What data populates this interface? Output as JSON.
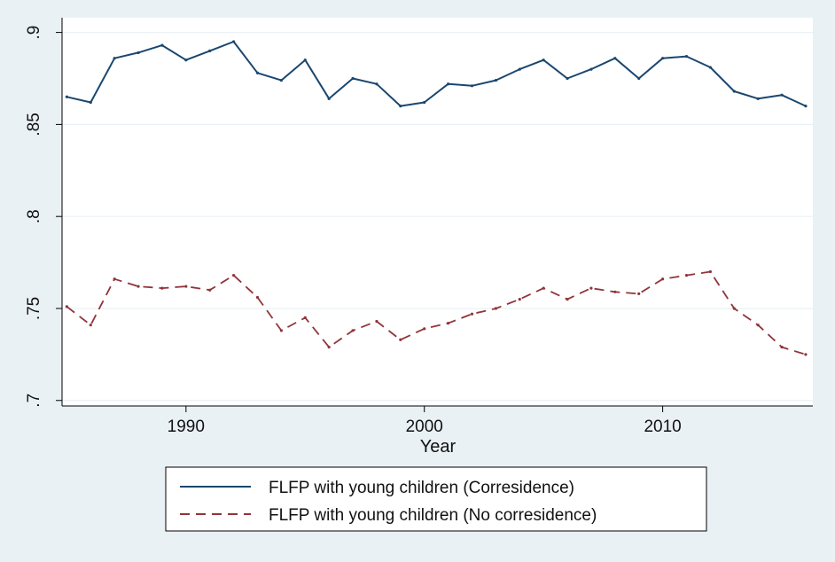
{
  "chart_data": {
    "type": "line",
    "title": "",
    "xlabel": "Year",
    "ylabel": "",
    "xlim": [
      1984.8,
      2016.3
    ],
    "ylim": [
      0.697,
      0.908
    ],
    "x_ticks": [
      1990,
      2000,
      2010
    ],
    "x_tick_labels": [
      "1990",
      "2000",
      "2010"
    ],
    "y_ticks": [
      0.7,
      0.75,
      0.8,
      0.85,
      0.9
    ],
    "y_tick_labels": [
      ".7",
      ".75",
      ".8",
      ".85",
      ".9"
    ],
    "grid": "horizontal",
    "legend_position": "bottom",
    "x": [
      1985,
      1986,
      1987,
      1988,
      1989,
      1990,
      1991,
      1992,
      1993,
      1994,
      1995,
      1996,
      1997,
      1998,
      1999,
      2000,
      2001,
      2002,
      2003,
      2004,
      2005,
      2006,
      2007,
      2008,
      2009,
      2010,
      2011,
      2012,
      2013,
      2014,
      2015,
      2016
    ],
    "series": [
      {
        "name": "FLFP with young children (Corresidence)",
        "color": "#1a476f",
        "dash": "solid",
        "values": [
          0.865,
          0.862,
          0.886,
          0.889,
          0.893,
          0.885,
          0.89,
          0.895,
          0.878,
          0.874,
          0.885,
          0.864,
          0.875,
          0.872,
          0.86,
          0.862,
          0.872,
          0.871,
          0.874,
          0.88,
          0.885,
          0.875,
          0.88,
          0.886,
          0.875,
          0.886,
          0.887,
          0.881,
          0.868,
          0.864,
          0.866,
          0.86
        ]
      },
      {
        "name": "FLFP with young children (No corresidence)",
        "color": "#90353b",
        "dash": "dashed",
        "values": [
          0.751,
          0.741,
          0.766,
          0.762,
          0.761,
          0.762,
          0.76,
          0.768,
          0.756,
          0.738,
          0.745,
          0.729,
          0.738,
          0.743,
          0.733,
          0.739,
          0.742,
          0.747,
          0.75,
          0.755,
          0.761,
          0.755,
          0.761,
          0.759,
          0.758,
          0.766,
          0.768,
          0.77,
          0.75,
          0.741,
          0.729,
          0.725
        ]
      }
    ]
  }
}
